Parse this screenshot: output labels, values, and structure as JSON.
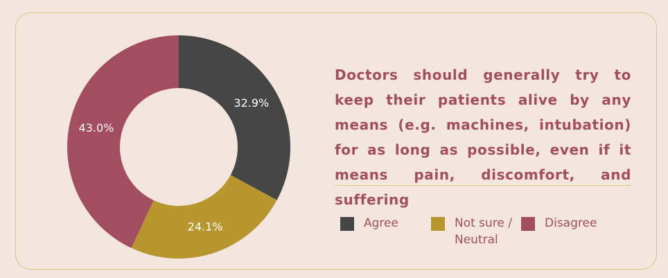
{
  "chart_data": {
    "type": "donut",
    "title": "Doctors should generally try to keep their patients alive by any means (e.g. machines, intubation) for as long as possible, even if it means pain, discom­fort, and suffering",
    "series": [
      {
        "name": "Agree",
        "color": "#464646",
        "values": [
          32.9
        ],
        "value_labels": [
          "32.9%"
        ]
      },
      {
        "name": "Not sure / Neutral",
        "color": "#b8962e",
        "values": [
          24.1
        ],
        "value_labels": [
          "24.1%"
        ]
      },
      {
        "name": "Disagree",
        "color": "#a34d60",
        "values": [
          43.0
        ],
        "value_labels": [
          "43.0%"
        ]
      }
    ]
  }
}
